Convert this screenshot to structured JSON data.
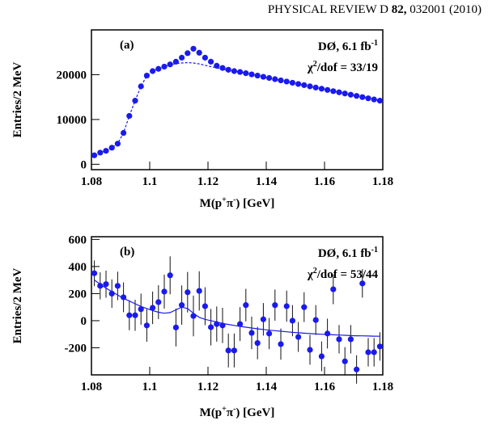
{
  "header": {
    "journal": "PHYSICAL REVIEW D",
    "volume": "82,",
    "citation": "032001 (2010)"
  },
  "chart_data": [
    {
      "type": "scatter",
      "panel_label": "(a)",
      "annotations": [
        {
          "text": "DØ, 6.1 fb",
          "sup": "-1"
        },
        {
          "text": "χ",
          "sup": "2",
          "tail": "/dof = 33/19"
        }
      ],
      "xlabel": [
        "M(p",
        "+",
        "π",
        "-",
        ") [GeV]"
      ],
      "ylabel": "Entries/2 MeV",
      "xlim": [
        1.08,
        1.18
      ],
      "xticks": [
        1.08,
        1.1,
        1.12,
        1.14,
        1.16,
        1.18
      ],
      "ylim": [
        -1200,
        30000
      ],
      "yticks": [
        0,
        10000,
        20000
      ],
      "x": [
        1.081,
        1.083,
        1.085,
        1.087,
        1.089,
        1.091,
        1.093,
        1.095,
        1.097,
        1.099,
        1.101,
        1.103,
        1.105,
        1.107,
        1.109,
        1.111,
        1.113,
        1.115,
        1.117,
        1.119,
        1.121,
        1.123,
        1.125,
        1.127,
        1.129,
        1.131,
        1.133,
        1.135,
        1.137,
        1.139,
        1.141,
        1.143,
        1.145,
        1.147,
        1.149,
        1.151,
        1.153,
        1.155,
        1.157,
        1.159,
        1.161,
        1.163,
        1.165,
        1.167,
        1.169,
        1.171,
        1.173,
        1.175,
        1.177,
        1.179
      ],
      "series": [
        {
          "style": "points",
          "color": "#1a1aee",
          "values": [
            2000,
            2600,
            3000,
            3700,
            4600,
            7000,
            10800,
            14200,
            17400,
            19800,
            20800,
            21300,
            21800,
            22300,
            22900,
            23800,
            24800,
            25800,
            24900,
            23800,
            22900,
            22000,
            21500,
            21100,
            20800,
            20600,
            20330,
            20070,
            19800,
            19530,
            19270,
            19000,
            18730,
            18470,
            18200,
            17930,
            17670,
            17400,
            17130,
            16870,
            16600,
            16330,
            16070,
            15800,
            15530,
            15270,
            15000,
            14730,
            14470,
            14200
          ]
        },
        {
          "style": "dashed",
          "color": "#1a1aee",
          "values": [
            2000,
            2600,
            3000,
            3700,
            4600,
            7000,
            10800,
            14200,
            17400,
            19800,
            20800,
            21300,
            21800,
            22200,
            22500,
            22600,
            22700,
            22600,
            22400,
            22100,
            21800,
            21500,
            21200,
            21000,
            20800,
            20600,
            20330,
            20070,
            19800,
            19530,
            19270,
            19000,
            18730,
            18470,
            18200,
            17930,
            17670,
            17400,
            17130,
            16870,
            16600,
            16330,
            16070,
            15800,
            15530,
            15270,
            15000,
            14730,
            14470,
            14200
          ]
        }
      ]
    },
    {
      "type": "scatter",
      "panel_label": "(b)",
      "annotations": [
        {
          "text": "DØ, 6.1 fb",
          "sup": "-1"
        },
        {
          "text": "χ",
          "sup": "2",
          "tail": "/dof = 53/44"
        }
      ],
      "xlabel": [
        "M(p",
        "+",
        "π",
        "-",
        ") [GeV]"
      ],
      "ylabel": "Entries/2 MeV",
      "xlim": [
        1.08,
        1.18
      ],
      "xticks": [
        1.08,
        1.1,
        1.12,
        1.14,
        1.16,
        1.18
      ],
      "ylim": [
        -400,
        620
      ],
      "yticks": [
        -200,
        0,
        200,
        400,
        600
      ],
      "x": [
        1.081,
        1.083,
        1.085,
        1.087,
        1.089,
        1.091,
        1.093,
        1.095,
        1.097,
        1.099,
        1.101,
        1.103,
        1.105,
        1.107,
        1.109,
        1.111,
        1.113,
        1.115,
        1.117,
        1.119,
        1.121,
        1.123,
        1.125,
        1.127,
        1.129,
        1.131,
        1.133,
        1.135,
        1.137,
        1.139,
        1.141,
        1.143,
        1.145,
        1.147,
        1.149,
        1.151,
        1.153,
        1.155,
        1.157,
        1.159,
        1.161,
        1.163,
        1.165,
        1.167,
        1.169,
        1.171,
        1.173,
        1.175,
        1.177,
        1.179
      ],
      "series": [
        {
          "style": "points",
          "color": "#1a1aee",
          "values": [
            350,
            257,
            270,
            200,
            257,
            173,
            40,
            40,
            85,
            -35,
            95,
            137,
            215,
            335,
            -50,
            115,
            210,
            35,
            220,
            107,
            -48,
            -25,
            -35,
            -220,
            -220,
            -25,
            115,
            -90,
            -165,
            10,
            -95,
            115,
            -173,
            107,
            0,
            -120,
            100,
            -215,
            5,
            -263,
            -95,
            232,
            -137,
            -300,
            -137,
            -360,
            275,
            -233,
            -233,
            -190
          ],
          "errors": [
            95,
            100,
            100,
            105,
            105,
            110,
            110,
            115,
            115,
            120,
            120,
            125,
            125,
            140,
            140,
            145,
            150,
            150,
            145,
            140,
            135,
            130,
            130,
            125,
            125,
            125,
            120,
            120,
            120,
            120,
            115,
            115,
            115,
            115,
            115,
            110,
            110,
            110,
            110,
            110,
            110,
            110,
            105,
            105,
            105,
            105,
            105,
            105,
            105,
            105
          ]
        },
        {
          "style": "solid",
          "color": "#1a1aee",
          "values": [
            300,
            270,
            240,
            215,
            190,
            165,
            145,
            125,
            105,
            90,
            75,
            62,
            55,
            60,
            80,
            100,
            90,
            55,
            25,
            10,
            0,
            -10,
            -20,
            -28,
            -35,
            -42,
            -48,
            -54,
            -60,
            -65,
            -70,
            -74,
            -78,
            -82,
            -86,
            -89,
            -92,
            -95,
            -98,
            -100,
            -102,
            -104,
            -106,
            -108,
            -110,
            -111,
            -112,
            -113,
            -114,
            -115
          ]
        }
      ]
    }
  ]
}
